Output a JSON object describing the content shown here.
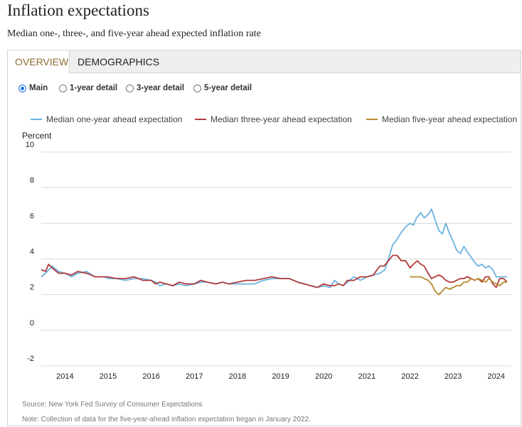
{
  "header": {
    "title": "Inflation expectations",
    "subtitle": "Median one-, three-, and five-year ahead expected inflation rate"
  },
  "tabs": [
    {
      "label": "OVERVIEW",
      "active": true
    },
    {
      "label": "DEMOGRAPHICS",
      "active": false
    }
  ],
  "radios": [
    {
      "label": "Main",
      "checked": true
    },
    {
      "label": "1-year detail",
      "checked": false
    },
    {
      "label": "3-year detail",
      "checked": false
    },
    {
      "label": "5-year detail",
      "checked": false
    }
  ],
  "colors": {
    "one_year": "#6bb3e0",
    "three_year": "#b23b3b",
    "five_year": "#b5892e",
    "grid": "#d9d9d9",
    "accent": "#1a73e8"
  },
  "footer": {
    "source": "Source: New York Fed Survey of Consumer Expectations",
    "note": "Note: Collection of data for the five-year-ahead inflation expectation began in January 2022."
  },
  "chart_data": {
    "type": "line",
    "title": "",
    "ylabel": "Percent",
    "xlabel": "",
    "ylim": [
      -2,
      10
    ],
    "yticks": [
      -2,
      0,
      2,
      4,
      6,
      8,
      10
    ],
    "xlim": [
      2013.45,
      2024.35
    ],
    "xticks": [
      2014,
      2015,
      2016,
      2017,
      2018,
      2019,
      2020,
      2021,
      2022,
      2023,
      2024
    ],
    "grid": true,
    "legend_position": "top",
    "series": [
      {
        "name": "Median one-year ahead expectation",
        "color_key": "one_year",
        "x": [
          2013.45,
          2013.55,
          2013.7,
          2013.85,
          2014.0,
          2014.15,
          2014.3,
          2014.5,
          2014.7,
          2014.9,
          2015.0,
          2015.2,
          2015.4,
          2015.6,
          2015.8,
          2016.0,
          2016.1,
          2016.2,
          2016.35,
          2016.5,
          2016.65,
          2016.8,
          2017.0,
          2017.15,
          2017.3,
          2017.5,
          2017.65,
          2017.8,
          2018.0,
          2018.2,
          2018.4,
          2018.6,
          2018.8,
          2019.0,
          2019.2,
          2019.4,
          2019.55,
          2019.7,
          2019.85,
          2020.0,
          2020.15,
          2020.25,
          2020.35,
          2020.45,
          2020.55,
          2020.7,
          2020.85,
          2021.0,
          2021.15,
          2021.3,
          2021.42,
          2021.5,
          2021.6,
          2021.7,
          2021.8,
          2021.9,
          2022.0,
          2022.08,
          2022.15,
          2022.25,
          2022.33,
          2022.42,
          2022.5,
          2022.58,
          2022.67,
          2022.75,
          2022.83,
          2022.92,
          2023.0,
          2023.08,
          2023.17,
          2023.25,
          2023.33,
          2023.42,
          2023.5,
          2023.58,
          2023.67,
          2023.75,
          2023.83,
          2023.92,
          2024.0,
          2024.08,
          2024.17,
          2024.25
        ],
        "y": [
          3.0,
          3.2,
          3.6,
          3.3,
          3.2,
          3.0,
          3.2,
          3.3,
          3.0,
          3.0,
          2.9,
          2.9,
          2.8,
          2.9,
          2.9,
          2.8,
          2.7,
          2.5,
          2.6,
          2.5,
          2.6,
          2.5,
          2.6,
          2.7,
          2.7,
          2.6,
          2.7,
          2.6,
          2.6,
          2.6,
          2.6,
          2.8,
          2.9,
          2.9,
          2.9,
          2.7,
          2.6,
          2.5,
          2.4,
          2.5,
          2.4,
          2.8,
          2.6,
          2.5,
          2.7,
          3.0,
          2.8,
          3.0,
          3.1,
          3.2,
          3.4,
          4.0,
          4.8,
          5.1,
          5.5,
          5.8,
          6.0,
          5.9,
          6.3,
          6.6,
          6.3,
          6.5,
          6.8,
          6.2,
          5.6,
          5.4,
          6.0,
          5.4,
          5.0,
          4.5,
          4.3,
          4.7,
          4.4,
          4.1,
          3.8,
          3.6,
          3.7,
          3.5,
          3.6,
          3.4,
          3.0,
          3.0,
          3.0,
          3.0
        ]
      },
      {
        "name": "Median three-year ahead expectation",
        "color_key": "three_year",
        "x": [
          2013.45,
          2013.55,
          2013.62,
          2013.7,
          2013.85,
          2014.0,
          2014.15,
          2014.3,
          2014.5,
          2014.7,
          2014.9,
          2015.0,
          2015.2,
          2015.4,
          2015.6,
          2015.8,
          2016.0,
          2016.1,
          2016.2,
          2016.35,
          2016.5,
          2016.65,
          2016.8,
          2017.0,
          2017.15,
          2017.3,
          2017.5,
          2017.65,
          2017.8,
          2018.0,
          2018.2,
          2018.4,
          2018.6,
          2018.8,
          2019.0,
          2019.2,
          2019.4,
          2019.55,
          2019.7,
          2019.85,
          2020.0,
          2020.15,
          2020.25,
          2020.35,
          2020.45,
          2020.55,
          2020.7,
          2020.85,
          2021.0,
          2021.15,
          2021.3,
          2021.4,
          2021.5,
          2021.6,
          2021.7,
          2021.8,
          2021.9,
          2022.0,
          2022.08,
          2022.17,
          2022.25,
          2022.33,
          2022.42,
          2022.5,
          2022.58,
          2022.67,
          2022.75,
          2022.83,
          2022.92,
          2023.0,
          2023.08,
          2023.17,
          2023.25,
          2023.33,
          2023.42,
          2023.5,
          2023.58,
          2023.67,
          2023.75,
          2023.83,
          2023.92,
          2024.0,
          2024.08,
          2024.17,
          2024.25
        ],
        "y": [
          3.4,
          3.3,
          3.7,
          3.5,
          3.2,
          3.2,
          3.1,
          3.3,
          3.2,
          3.0,
          3.0,
          3.0,
          2.9,
          2.9,
          3.0,
          2.8,
          2.8,
          2.6,
          2.7,
          2.6,
          2.5,
          2.7,
          2.6,
          2.6,
          2.8,
          2.7,
          2.6,
          2.7,
          2.6,
          2.7,
          2.8,
          2.8,
          2.9,
          3.0,
          2.9,
          2.9,
          2.7,
          2.6,
          2.5,
          2.4,
          2.6,
          2.5,
          2.5,
          2.6,
          2.5,
          2.8,
          2.8,
          3.0,
          3.0,
          3.1,
          3.6,
          3.6,
          3.9,
          4.2,
          4.2,
          3.9,
          3.9,
          3.5,
          3.7,
          3.9,
          3.7,
          3.6,
          3.2,
          2.9,
          3.0,
          3.1,
          3.0,
          2.8,
          2.7,
          2.7,
          2.8,
          2.9,
          2.9,
          3.0,
          2.9,
          2.8,
          2.9,
          2.7,
          3.0,
          3.0,
          2.6,
          2.4,
          2.9,
          2.9,
          2.7
        ]
      },
      {
        "name": "Median five-year ahead expectation",
        "color_key": "five_year",
        "x": [
          2022.0,
          2022.08,
          2022.17,
          2022.25,
          2022.33,
          2022.42,
          2022.5,
          2022.58,
          2022.67,
          2022.75,
          2022.83,
          2022.92,
          2023.0,
          2023.08,
          2023.17,
          2023.25,
          2023.33,
          2023.42,
          2023.5,
          2023.58,
          2023.67,
          2023.75,
          2023.83,
          2023.92,
          2024.0,
          2024.08,
          2024.17,
          2024.25
        ],
        "y": [
          3.0,
          3.0,
          3.0,
          3.0,
          2.9,
          2.8,
          2.6,
          2.2,
          2.0,
          2.2,
          2.4,
          2.3,
          2.4,
          2.5,
          2.5,
          2.7,
          2.7,
          2.9,
          2.8,
          2.9,
          2.8,
          2.7,
          2.9,
          2.7,
          2.6,
          2.5,
          2.7,
          2.7
        ]
      }
    ]
  }
}
